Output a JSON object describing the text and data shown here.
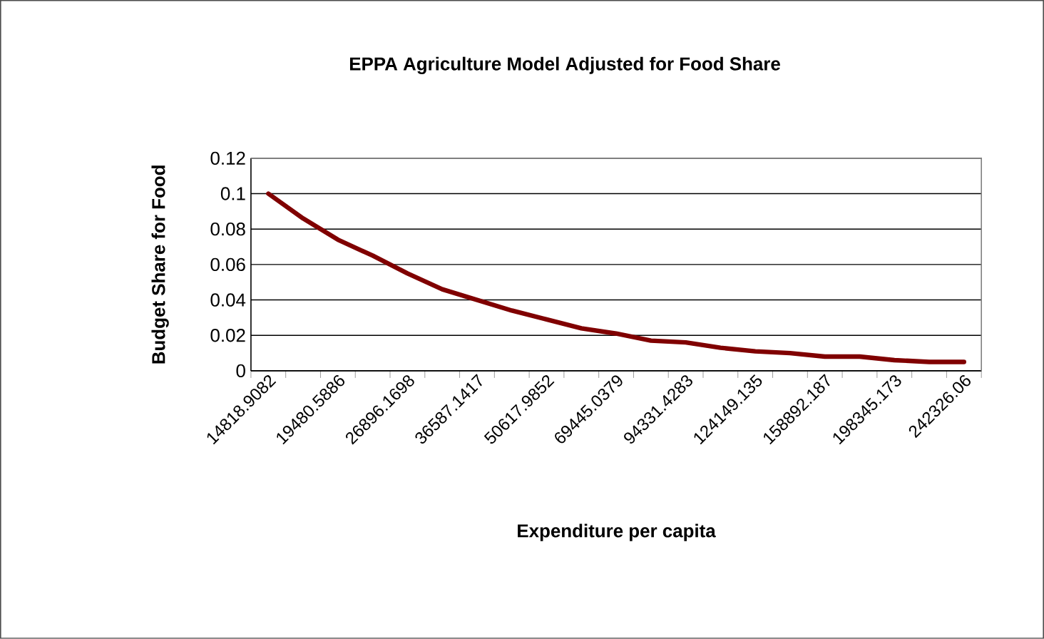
{
  "chart_data": {
    "type": "line",
    "title": "EPPA Agriculture Model Adjusted for Food Share",
    "xlabel": "Expenditure per capita",
    "ylabel": "Budget Share for Food",
    "categories": [
      "14818.9082",
      null,
      "19480.5886",
      null,
      "26896.1698",
      null,
      "36587.1417",
      null,
      "50617.9852",
      null,
      "69445.0379",
      null,
      "94331.4283",
      null,
      "124149.135",
      null,
      "158892.187",
      null,
      "198345.173",
      null,
      "242326.06"
    ],
    "series": [
      {
        "color": "#800000",
        "values": [
          0.1,
          0.086,
          0.074,
          0.065,
          0.055,
          0.046,
          0.04,
          0.034,
          0.029,
          0.024,
          0.021,
          0.017,
          0.016,
          0.013,
          0.011,
          0.01,
          0.008,
          0.008,
          0.006,
          0.005,
          0.005
        ]
      }
    ],
    "ylim": [
      0,
      0.12
    ],
    "yticks": [
      0,
      0.02,
      0.04,
      0.06,
      0.08,
      0.1,
      0.12
    ],
    "grid": "y",
    "marker": "none",
    "line_style": "solid"
  }
}
